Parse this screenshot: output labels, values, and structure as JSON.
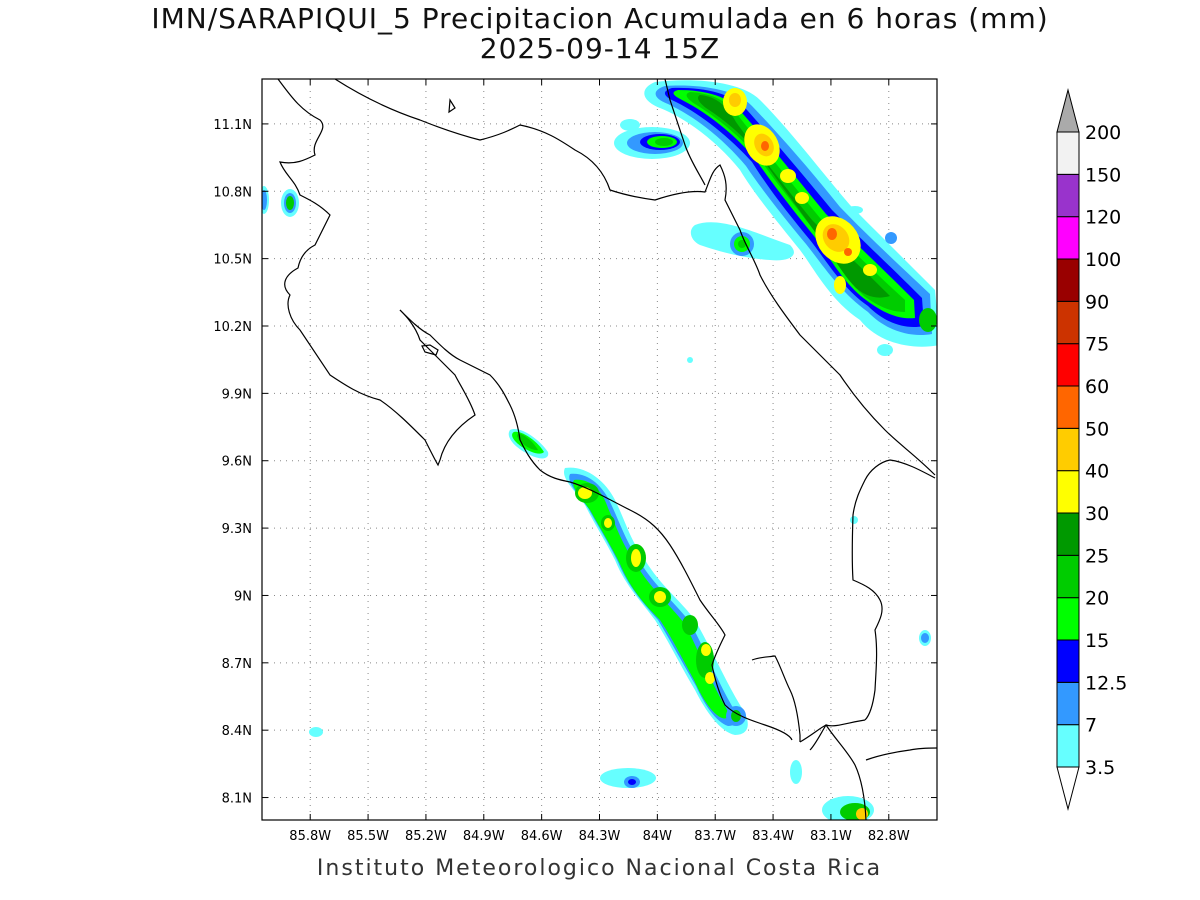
{
  "title": {
    "line1": "IMN/SARAPIQUI_5 Precipitacion Acumulada en 6 horas (mm)",
    "line2": "2025-09-14 15Z"
  },
  "footer": "Instituto Meteorologico Nacional Costa Rica",
  "map": {
    "lon_range": [
      -86.05,
      -82.55
    ],
    "lat_range": [
      8.0,
      11.3
    ],
    "lon_ticks": [
      "85.8W",
      "85.5W",
      "85.2W",
      "84.9W",
      "84.6W",
      "84.3W",
      "84W",
      "83.7W",
      "83.4W",
      "83.1W",
      "82.8W"
    ],
    "lat_ticks": [
      "8.1N",
      "8.4N",
      "8.7N",
      "9N",
      "9.3N",
      "9.6N",
      "9.9N",
      "10.2N",
      "10.5N",
      "10.8N",
      "11.1N"
    ],
    "grid": "dotted"
  },
  "colorbar": {
    "levels": [
      "3.5",
      "7",
      "12.5",
      "15",
      "20",
      "25",
      "30",
      "40",
      "50",
      "60",
      "75",
      "90",
      "100",
      "120",
      "150",
      "200"
    ],
    "colors": [
      "#66ffff",
      "#3399ff",
      "#0000ff",
      "#00ff00",
      "#00cc00",
      "#009900",
      "#ffff00",
      "#ffcc00",
      "#ff6600",
      "#ff0000",
      "#cc3300",
      "#990000",
      "#ff00ff",
      "#9933cc",
      "#f2f2f2",
      "#aaaaaa"
    ]
  }
}
